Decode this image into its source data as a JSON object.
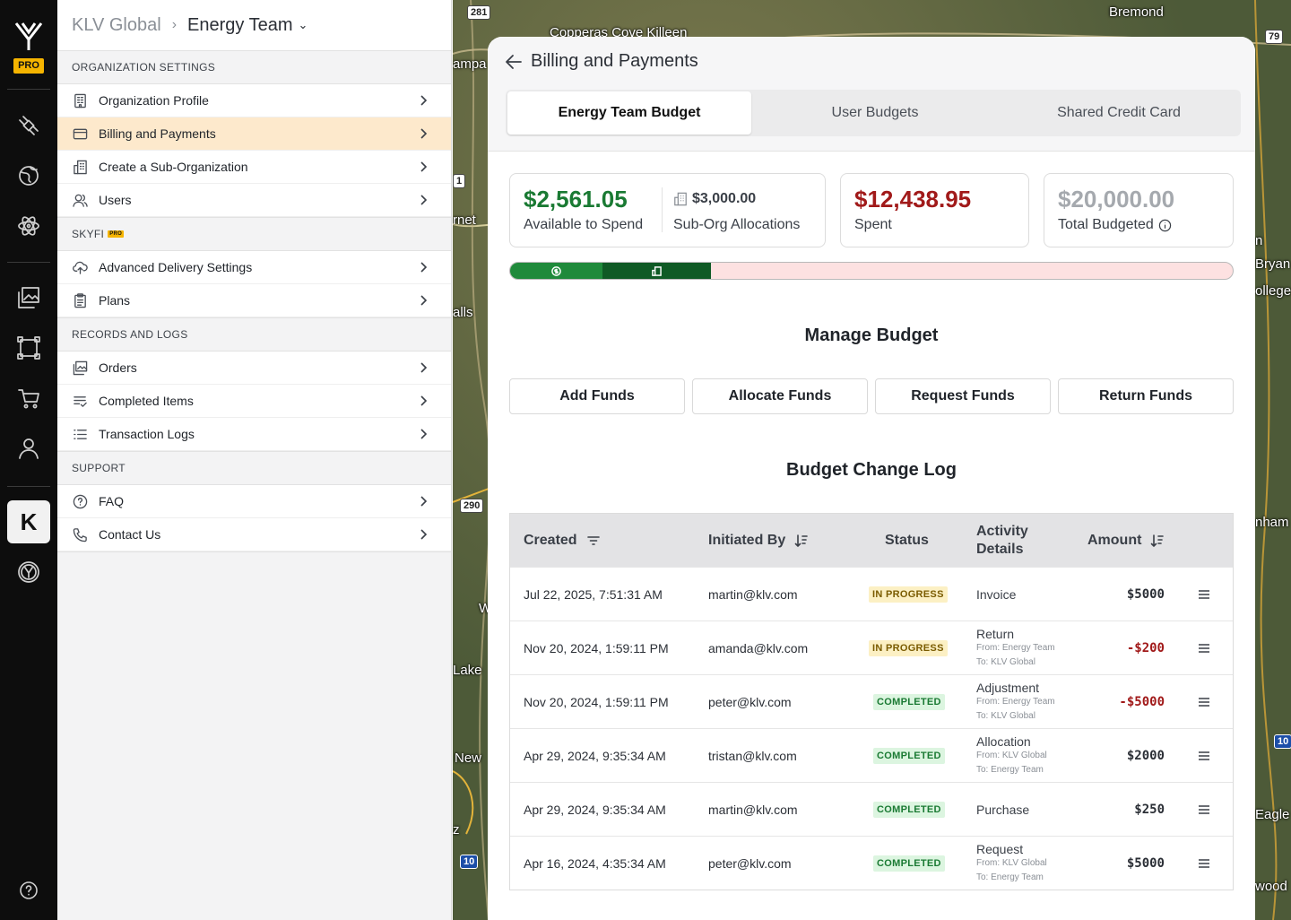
{
  "rail": {
    "pro_badge": "PRO",
    "k_label": "K"
  },
  "breadcrumb": {
    "root": "KLV Global",
    "current": "Energy Team"
  },
  "sections": {
    "org": {
      "title": "ORGANIZATION SETTINGS",
      "items": [
        "Organization Profile",
        "Billing and Payments",
        "Create a Sub-Organization",
        "Users"
      ]
    },
    "skyfi": {
      "title": "SKYFI",
      "badge": "PRO",
      "items": [
        "Advanced Delivery Settings",
        "Plans"
      ]
    },
    "records": {
      "title": "RECORDS AND LOGS",
      "items": [
        "Orders",
        "Completed Items",
        "Transaction Logs"
      ]
    },
    "support": {
      "title": "SUPPORT",
      "items": [
        "FAQ",
        "Contact Us"
      ]
    }
  },
  "map": {
    "labels": [
      "Bremond",
      "Copperas Cove Killeen",
      "ampa",
      "rnet",
      "alls",
      "Lake",
      "New",
      "z",
      "W",
      "n",
      "Bryan",
      "ollege",
      "nham",
      "Eagle",
      "wood"
    ],
    "shields": [
      "281",
      "79",
      "1",
      "290",
      "10",
      "10"
    ]
  },
  "panel": {
    "title": "Billing and Payments",
    "tabs": [
      "Energy Team Budget",
      "User Budgets",
      "Shared Credit Card"
    ],
    "available": {
      "amount": "$2,561.05",
      "label": "Available to Spend"
    },
    "suborg": {
      "amount": "$3,000.00",
      "label": "Sub-Org Allocations"
    },
    "spent": {
      "amount": "$12,438.95",
      "label": "Spent"
    },
    "total": {
      "amount": "$20,000.00",
      "label": "Total Budgeted"
    },
    "budget_bar": {
      "available_fraction": 0.128,
      "suborg_fraction": 0.15,
      "total": 20000,
      "available": 2561.05,
      "suborg": 3000
    },
    "manage_title": "Manage Budget",
    "buttons": [
      "Add Funds",
      "Allocate Funds",
      "Request Funds",
      "Return Funds"
    ],
    "log_title": "Budget Change Log",
    "columns": [
      "Created",
      "Initiated By",
      "Status",
      "Activity Details",
      "Amount"
    ],
    "rows": [
      {
        "created": "Jul 22, 2025, 7:51:31 AM",
        "by": "martin@klv.com",
        "status": "IN PROGRESS",
        "activity": "Invoice",
        "from": "",
        "to": "",
        "amount": "$5000"
      },
      {
        "created": "Nov 20, 2024, 1:59:11 PM",
        "by": "amanda@klv.com",
        "status": "IN PROGRESS",
        "activity": "Return",
        "from": "From: Energy Team",
        "to": "To: KLV Global",
        "amount": "-$200"
      },
      {
        "created": "Nov 20, 2024, 1:59:11 PM",
        "by": "peter@klv.com",
        "status": "COMPLETED",
        "activity": "Adjustment",
        "from": "From: Energy Team",
        "to": "To:  KLV Global",
        "amount": "-$5000"
      },
      {
        "created": "Apr 29, 2024, 9:35:34 AM",
        "by": "tristan@klv.com",
        "status": "COMPLETED",
        "activity": "Allocation",
        "from": "From: KLV Global",
        "to": "To: Energy Team",
        "amount": "$2000"
      },
      {
        "created": "Apr 29, 2024, 9:35:34 AM",
        "by": "martin@klv.com",
        "status": "COMPLETED",
        "activity": "Purchase",
        "from": "",
        "to": "",
        "amount": "$250"
      },
      {
        "created": "Apr 16, 2024, 4:35:34 AM",
        "by": "peter@klv.com",
        "status": "COMPLETED",
        "activity": "Request",
        "from": "From: KLV Global",
        "to": "To: Energy Team",
        "amount": "$5000"
      }
    ]
  },
  "colors": {
    "accent_pro": "#f5b400",
    "active_menu": "#fde9cc",
    "green": "#1a7a33",
    "dark_green": "#0f5a25",
    "red": "#a11a1a"
  }
}
